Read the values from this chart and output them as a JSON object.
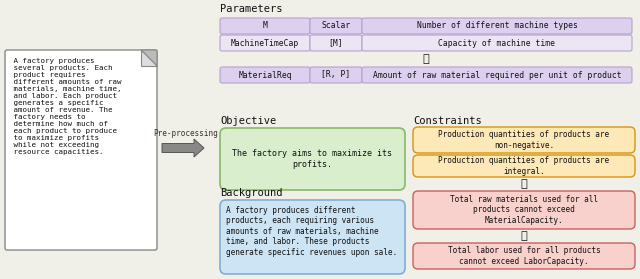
{
  "bg_color": "#f0efe8",
  "paper_text": " A factory produces\n several products. Each\n product requires\n different amounts of raw\n materials, machine time,\n and labor. Each product\n generates a specific\n amount of revenue. The\n factory needs to\n determine how much of\n each product to produce\n to maximize profits\n while not exceeding\n resource capacities.",
  "preprocessing_label": "Pre-processing",
  "params_title": "Parameters",
  "params_rows": [
    [
      "M",
      "Scalar",
      "Number of different machine types"
    ],
    [
      "MachineTimeCap",
      "[M]",
      "Capacity of machine time"
    ]
  ],
  "params_last_row": [
    "MaterialReq",
    "[R, P]",
    "Amount of raw material required per unit of product"
  ],
  "param_row_colors": [
    "#ddd0ee",
    "#ece6f4"
  ],
  "param_border_color": "#b8a0d0",
  "param_last_color": "#ddd0ee",
  "objective_title": "Objective",
  "objective_text": "The factory aims to maximize its\nprofits.",
  "objective_box_color": "#d8eecc",
  "objective_border_color": "#88b868",
  "background_title": "Background",
  "background_text": "A factory produces different\nproducts, each requiring various\namounts of raw materials, machine\ntime, and labor. These products\ngenerate specific revenues upon sale.",
  "background_box_color": "#cce4f4",
  "background_border_color": "#80aed0",
  "constraints_title": "Constraints",
  "constraints": [
    {
      "text": "Production quantities of products are\nnon-negative.",
      "fc": "#fde8b8",
      "ec": "#d8940c"
    },
    {
      "text": "Production quantities of products are\nintegral.",
      "fc": "#fde8b8",
      "ec": "#d8940c"
    },
    {
      "text": "Total raw materials used for all\nproducts cannot exceed\nMaterialCapacity.",
      "fc": "#f8d0cc",
      "ec": "#c86060"
    },
    {
      "text": "Total labor used for all products\ncannot exceed LaborCapacity.",
      "fc": "#f8d0cc",
      "ec": "#c86060"
    }
  ],
  "arrow_color": "#888888",
  "arrow_edge_color": "#555555"
}
